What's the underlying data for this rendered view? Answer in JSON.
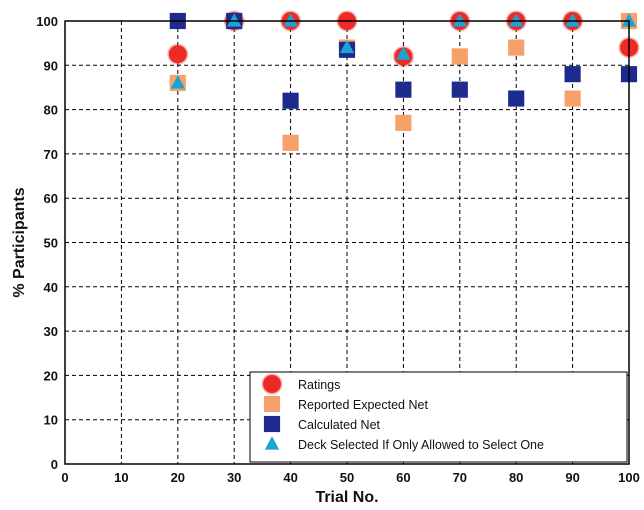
{
  "chart_data": {
    "type": "scatter",
    "title": "",
    "xlabel": "Trial No.",
    "ylabel": "% Participants",
    "xlim": [
      0,
      100
    ],
    "ylim": [
      0,
      100
    ],
    "xticks": [
      0,
      10,
      20,
      30,
      40,
      50,
      60,
      70,
      80,
      90,
      100
    ],
    "yticks": [
      0,
      10,
      20,
      30,
      40,
      50,
      60,
      70,
      80,
      90,
      100
    ],
    "grid": true,
    "grid_style": "dashed",
    "legend_position": "bottom-right",
    "series": [
      {
        "name": "Ratings",
        "marker": "circle",
        "color": "#ee2a24",
        "x": [
          20,
          30,
          40,
          50,
          60,
          70,
          80,
          90,
          100
        ],
        "y": [
          92.5,
          100,
          100,
          100,
          92,
          100,
          100,
          100,
          94
        ]
      },
      {
        "name": "Reported Expected Net",
        "marker": "square",
        "color": "#f7a06a",
        "x": [
          20,
          30,
          40,
          50,
          60,
          70,
          80,
          90,
          100
        ],
        "y": [
          86,
          100,
          72.5,
          94,
          77,
          92,
          94,
          82.5,
          100
        ]
      },
      {
        "name": "Calculated Net",
        "marker": "square",
        "color": "#1f2a8f",
        "x": [
          20,
          30,
          40,
          50,
          60,
          70,
          80,
          90,
          100
        ],
        "y": [
          100,
          100,
          82,
          93.5,
          84.5,
          84.5,
          82.5,
          88,
          88
        ]
      },
      {
        "name": "Deck Selected If Only Allowed to Select One",
        "marker": "triangle",
        "color": "#1aa3d4",
        "x": [
          20,
          30,
          40,
          50,
          60,
          70,
          80,
          90,
          100
        ],
        "y": [
          86,
          100,
          100,
          94,
          92.5,
          100,
          100,
          100,
          100
        ]
      }
    ]
  }
}
